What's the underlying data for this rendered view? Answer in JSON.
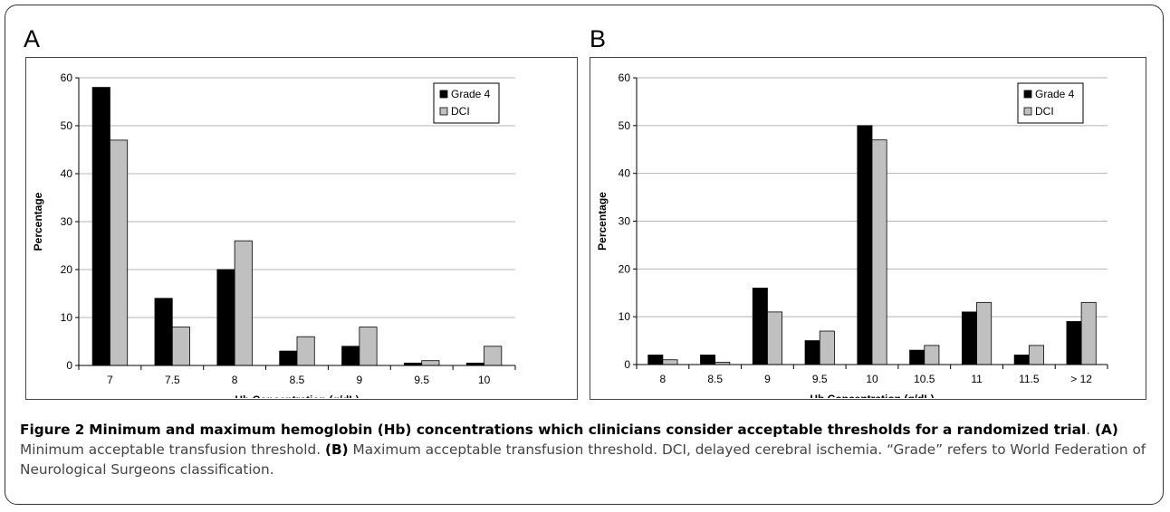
{
  "panels": {
    "a": {
      "letter": "A"
    },
    "b": {
      "letter": "B"
    }
  },
  "caption": {
    "figure_label": "Figure 2",
    "title": "Minimum and maximum hemoglobin (Hb) concentrations which clinicians consider acceptable thresholds for a randomized trial",
    "a_label": "(A)",
    "a_text": "Minimum acceptable transfusion threshold.",
    "b_label": "(B)",
    "b_text": "Maximum acceptable transfusion threshold. DCI, delayed cerebral ischemia. “Grade” refers to World Federation of Neurological Surgeons classification."
  },
  "colors": {
    "grade4": "#000000",
    "dci": "#c0c0c0"
  },
  "chart_data": [
    {
      "type": "bar",
      "panel": "A",
      "categories": [
        "7",
        "7.5",
        "8",
        "8.5",
        "9",
        "9.5",
        "10"
      ],
      "series": [
        {
          "name": "Grade 4",
          "values": [
            58,
            14,
            20,
            3,
            4,
            0.5,
            0.5
          ]
        },
        {
          "name": "DCI",
          "values": [
            47,
            8,
            26,
            6,
            8,
            1,
            4
          ]
        }
      ],
      "xlabel": "Hb Concentration (g/dL)",
      "ylabel": "Percentage",
      "ylim": [
        0,
        60
      ],
      "yticks": [
        "0",
        "10",
        "20",
        "30",
        "40",
        "50",
        "60"
      ],
      "grid": true,
      "legend": "top-right"
    },
    {
      "type": "bar",
      "panel": "B",
      "categories": [
        "8",
        "8.5",
        "9",
        "9.5",
        "10",
        "10.5",
        "11",
        "11.5",
        "> 12"
      ],
      "series": [
        {
          "name": "Grade 4",
          "values": [
            2,
            2,
            16,
            5,
            50,
            3,
            11,
            2,
            9
          ]
        },
        {
          "name": "DCI",
          "values": [
            1,
            0.5,
            11,
            7,
            47,
            4,
            13,
            4,
            13
          ]
        }
      ],
      "xlabel": "Hb Concentration (g/dL)",
      "ylabel": "Percentage",
      "ylim": [
        0,
        60
      ],
      "yticks": [
        "0",
        "10",
        "20",
        "30",
        "40",
        "50",
        "60"
      ],
      "grid": true,
      "legend": "top-right"
    }
  ]
}
